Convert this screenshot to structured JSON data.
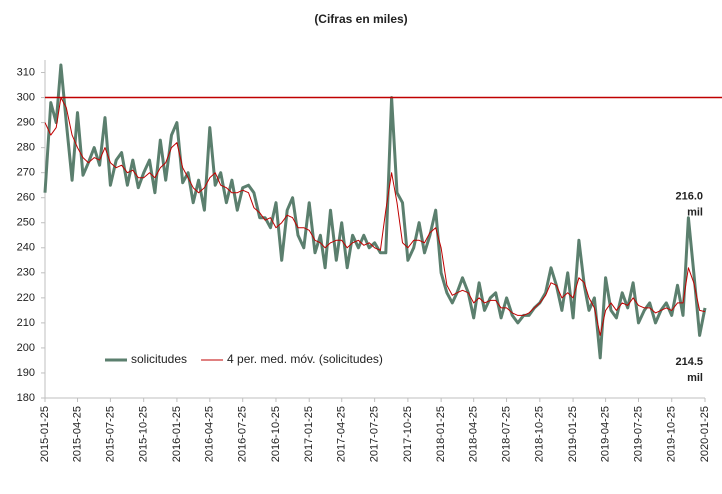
{
  "chart_data": {
    "type": "line",
    "title": "(Cifras en miles)",
    "x": [
      "2015-01-25",
      "2015-02-10",
      "2015-02-25",
      "2015-03-10",
      "2015-03-25",
      "2015-04-10",
      "2015-04-25",
      "2015-05-10",
      "2015-05-25",
      "2015-06-10",
      "2015-06-25",
      "2015-07-10",
      "2015-07-25",
      "2015-08-10",
      "2015-08-25",
      "2015-09-10",
      "2015-09-25",
      "2015-10-10",
      "2015-10-25",
      "2015-11-10",
      "2015-11-25",
      "2015-12-10",
      "2015-12-25",
      "2016-01-10",
      "2016-01-25",
      "2016-02-10",
      "2016-02-25",
      "2016-03-10",
      "2016-03-25",
      "2016-04-10",
      "2016-04-25",
      "2016-05-10",
      "2016-05-25",
      "2016-06-10",
      "2016-06-25",
      "2016-07-10",
      "2016-07-25",
      "2016-08-10",
      "2016-08-25",
      "2016-09-10",
      "2016-09-25",
      "2016-10-10",
      "2016-10-25",
      "2016-11-10",
      "2016-11-25",
      "2016-12-10",
      "2016-12-25",
      "2017-01-10",
      "2017-01-25",
      "2017-02-10",
      "2017-02-25",
      "2017-03-10",
      "2017-03-25",
      "2017-04-10",
      "2017-04-25",
      "2017-05-10",
      "2017-05-25",
      "2017-06-10",
      "2017-06-25",
      "2017-07-10",
      "2017-07-25",
      "2017-08-10",
      "2017-08-25",
      "2017-09-10",
      "2017-09-25",
      "2017-10-10",
      "2017-10-25",
      "2017-11-10",
      "2017-11-25",
      "2017-12-10",
      "2017-12-25",
      "2018-01-10",
      "2018-01-25",
      "2018-02-10",
      "2018-02-25",
      "2018-03-10",
      "2018-03-25",
      "2018-04-10",
      "2018-04-25",
      "2018-05-10",
      "2018-05-25",
      "2018-06-10",
      "2018-06-25",
      "2018-07-10",
      "2018-07-25",
      "2018-08-10",
      "2018-08-25",
      "2018-09-10",
      "2018-09-25",
      "2018-10-10",
      "2018-10-25",
      "2018-11-10",
      "2018-11-25",
      "2018-12-10",
      "2018-12-25",
      "2019-01-10",
      "2019-01-25",
      "2019-02-10",
      "2019-02-25",
      "2019-03-10",
      "2019-03-25",
      "2019-04-10",
      "2019-04-25",
      "2019-05-10",
      "2019-05-25",
      "2019-06-10",
      "2019-06-25",
      "2019-07-10",
      "2019-07-25",
      "2019-08-10",
      "2019-08-25",
      "2019-09-10",
      "2019-09-25",
      "2019-10-10",
      "2019-10-25",
      "2019-11-10",
      "2019-11-25",
      "2019-12-10",
      "2019-12-25",
      "2020-01-10",
      "2020-01-25"
    ],
    "series": [
      {
        "name": "solicitudes",
        "color": "#5b7f6e",
        "width": 3,
        "values": [
          262,
          298,
          290,
          313,
          290,
          267,
          294,
          269,
          274,
          280,
          273,
          292,
          265,
          275,
          278,
          265,
          275,
          264,
          270,
          275,
          262,
          283,
          267,
          285,
          290,
          266,
          270,
          258,
          267,
          255,
          288,
          265,
          270,
          258,
          267,
          255,
          264,
          265,
          262,
          252,
          252,
          248,
          258,
          235,
          255,
          260,
          245,
          240,
          258,
          238,
          245,
          232,
          255,
          235,
          250,
          232,
          245,
          240,
          245,
          240,
          242,
          238,
          238,
          300,
          262,
          258,
          235,
          240,
          250,
          238,
          245,
          255,
          230,
          222,
          218,
          222,
          228,
          222,
          212,
          226,
          215,
          220,
          222,
          212,
          220,
          213,
          210,
          213,
          213,
          216,
          218,
          222,
          232,
          225,
          215,
          230,
          212,
          243,
          225,
          215,
          220,
          196,
          228,
          215,
          212,
          222,
          216,
          226,
          210,
          215,
          218,
          210,
          215,
          218,
          213,
          225,
          213,
          252,
          230,
          205,
          216
        ]
      },
      {
        "name": "4 per. med. móv. (solicitudes)",
        "color": "#c00000",
        "width": 1,
        "values": [
          290,
          285,
          288,
          300,
          296,
          285,
          280,
          276,
          274,
          276,
          275,
          280,
          274,
          272,
          273,
          270,
          271,
          268,
          268,
          270,
          268,
          272,
          274,
          280,
          282,
          272,
          268,
          264,
          262,
          264,
          268,
          270,
          265,
          264,
          262,
          262,
          263,
          262,
          256,
          254,
          251,
          252,
          248,
          250,
          253,
          252,
          248,
          248,
          247,
          243,
          242,
          240,
          242,
          243,
          243,
          240,
          242,
          243,
          241,
          242,
          240,
          239,
          255,
          270,
          258,
          242,
          240,
          243,
          243,
          242,
          246,
          248,
          240,
          225,
          221,
          222,
          223,
          222,
          218,
          220,
          218,
          219,
          219,
          216,
          216,
          214,
          213,
          213,
          214,
          216,
          218,
          221,
          226,
          225,
          220,
          222,
          220,
          228,
          226,
          220,
          216,
          205,
          215,
          218,
          215,
          218,
          217,
          220,
          217,
          216,
          216,
          214,
          215,
          216,
          215,
          218,
          218,
          232,
          226,
          215,
          214.5
        ]
      }
    ],
    "xlim": [
      "2015-01-25",
      "2020-01-25"
    ],
    "xticks": [
      "2015-01-25",
      "2015-04-25",
      "2015-07-25",
      "2015-10-25",
      "2016-01-25",
      "2016-04-25",
      "2016-07-25",
      "2016-10-25",
      "2017-01-25",
      "2017-04-25",
      "2017-07-25",
      "2017-10-25",
      "2018-01-25",
      "2018-04-25",
      "2018-07-25",
      "2018-10-25",
      "2019-01-25",
      "2019-04-25",
      "2019-07-25",
      "2019-10-25",
      "2020-01-25"
    ],
    "ylim": [
      180,
      315
    ],
    "yticks": [
      180,
      190,
      200,
      210,
      220,
      230,
      240,
      250,
      260,
      270,
      280,
      290,
      300,
      310
    ],
    "reference_line": {
      "value": 300,
      "color": "#c00000"
    },
    "annotations": [
      {
        "lines": [
          "216.0",
          "mil"
        ],
        "color": "#5b7f6e",
        "y": 250
      },
      {
        "lines": [
          "214.5",
          "mil"
        ],
        "color": "#e00000",
        "y": 184
      }
    ],
    "legend": "lower-left"
  }
}
